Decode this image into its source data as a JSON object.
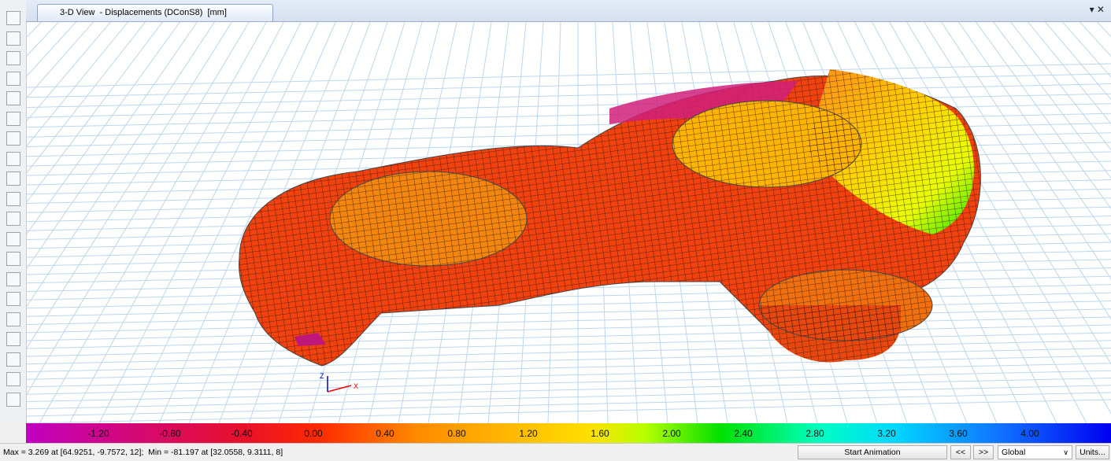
{
  "tab": {
    "title": "3-D View  - Displacements (DConS8)  [mm]"
  },
  "axes": {
    "x": "X",
    "z": "Z"
  },
  "legend": {
    "labels": [
      "-1.20",
      "-0.80",
      "-0.40",
      "0.00",
      "0.40",
      "0.80",
      "1.20",
      "1.60",
      "2.00",
      "2.40",
      "2.80",
      "3.20",
      "3.60",
      "4.00"
    ]
  },
  "status": {
    "text": "Max = 3.269 at [64.9251, -9.7572, 12];  Min = -81.197 at [32.0558, 9.3111, 8]"
  },
  "controls": {
    "start_animation": "Start Animation",
    "prev": "<<",
    "next": ">>",
    "coordinate_system": "Global",
    "units": "Units..."
  }
}
